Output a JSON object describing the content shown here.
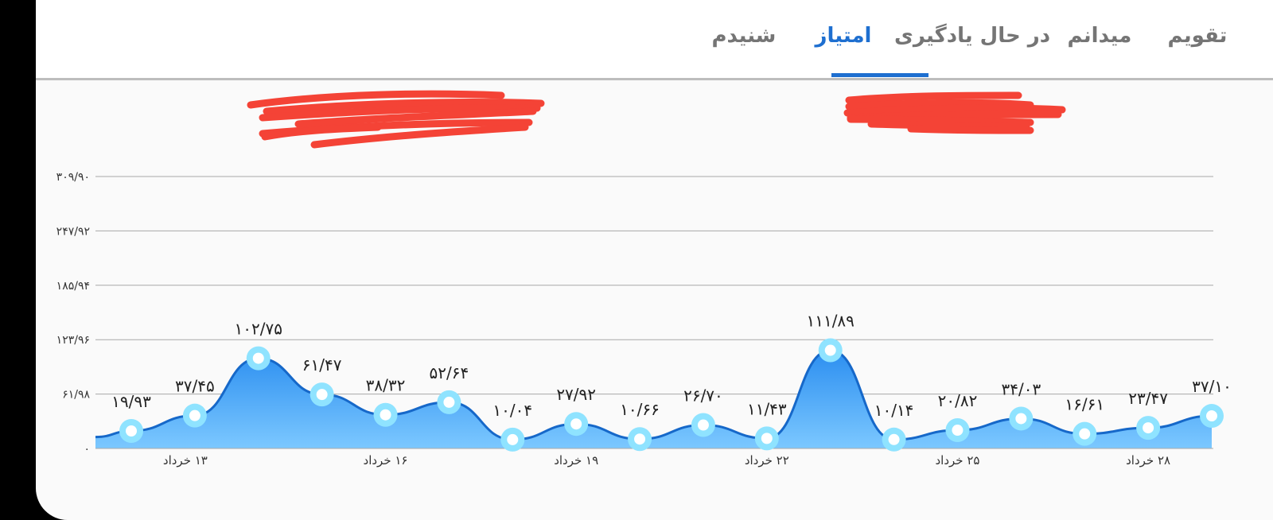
{
  "tabs": [
    {
      "label": "تقویم",
      "active": false
    },
    {
      "label": "میدانم",
      "active": false
    },
    {
      "label": "در حال یادگیری",
      "active": false
    },
    {
      "label": "امتیاز",
      "active": true
    },
    {
      "label": "شنیدم",
      "active": false
    }
  ],
  "colors": {
    "accent": "#1e6fd0",
    "area_top": "#2b8ef0",
    "area_bottom": "#7cc8ff",
    "marker_ring": "#8fe3ff",
    "redaction": "#f44336"
  },
  "chart_data": {
    "type": "area",
    "y_ticks": [
      "۰",
      "۶۱/۹۸",
      "۱۲۳/۹۶",
      "۱۸۵/۹۴",
      "۲۴۷/۹۲",
      "۳۰۹/۹۰"
    ],
    "y_tick_values": [
      0,
      61.98,
      123.96,
      185.94,
      247.92,
      309.9
    ],
    "ylim": [
      0,
      309.9
    ],
    "grid": true,
    "x_labels": [
      "۱۳ خرداد",
      "۱۶ خرداد",
      "۱۹ خرداد",
      "۲۲ خرداد",
      "۲۵ خرداد",
      "۲۸ خرداد"
    ],
    "values": [
      19.93,
      37.45,
      102.75,
      61.47,
      38.32,
      52.64,
      10.04,
      27.92,
      10.66,
      26.7,
      11.43,
      111.89,
      10.14,
      20.82,
      34.03,
      16.61,
      23.47,
      37.1
    ],
    "value_labels": [
      "۱۹/۹۳",
      "۳۷/۴۵",
      "۱۰۲/۷۵",
      "۶۱/۴۷",
      "۳۸/۳۲",
      "۵۲/۶۴",
      "۱۰/۰۴",
      "۲۷/۹۲",
      "۱۰/۶۶",
      "۲۶/۷۰",
      "۱۱/۴۳",
      "۱۱۱/۸۹",
      "۱۰/۱۴",
      "۲۰/۸۲",
      "۳۴/۰۳",
      "۱۶/۶۱",
      "۲۳/۴۷",
      "۳۷/۱۰"
    ]
  }
}
